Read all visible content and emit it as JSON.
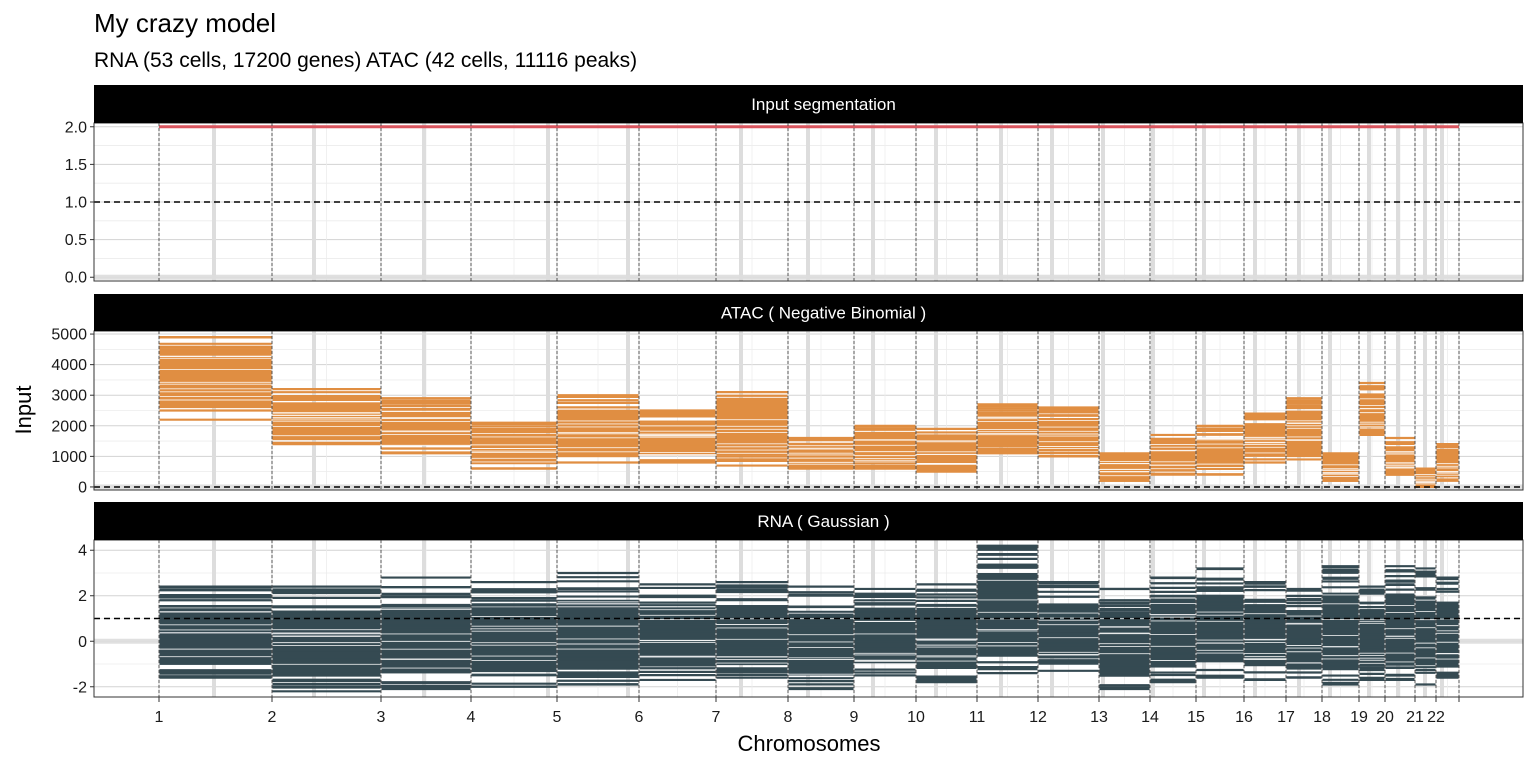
{
  "chart_data": {
    "type": "segment",
    "title": "My crazy model",
    "subtitle": "RNA (53 cells, 17200 genes) ATAC (42 cells, 11116 peaks)",
    "xlabel": "Chromosomes",
    "ylabel": "Input",
    "chromosomes": [
      "1",
      "2",
      "3",
      "4",
      "5",
      "6",
      "7",
      "8",
      "9",
      "10",
      "11",
      "12",
      "13",
      "14",
      "15",
      "16",
      "17",
      "18",
      "19",
      "20",
      "21",
      "22"
    ],
    "colors": {
      "input_segmentation": "#d9555e",
      "atac": "#e08e42",
      "rna": "#354a52",
      "gap": "#dddddd",
      "strip_bg": "#000000"
    },
    "panels": [
      {
        "strip": "Input segmentation",
        "series": "Input segmentation",
        "yticks": [
          "0.0",
          "0.5",
          "1.0",
          "1.5",
          "2.0"
        ],
        "ylim": [
          -0.05,
          2.05
        ],
        "ref_line": 1.0,
        "value": 2.0
      },
      {
        "strip": "ATAC ( Negative Binomial )",
        "series": "ATAC",
        "yticks": [
          "0",
          "1000",
          "2000",
          "3000",
          "4000",
          "5000"
        ],
        "ylim": [
          -100,
          5100
        ],
        "ref_line": 0,
        "ranges": [
          [
            2200,
            4900
          ],
          [
            1400,
            3200
          ],
          [
            1100,
            2900
          ],
          [
            600,
            2100
          ],
          [
            800,
            3000
          ],
          [
            800,
            2500
          ],
          [
            700,
            3100
          ],
          [
            600,
            1600
          ],
          [
            600,
            2000
          ],
          [
            500,
            1900
          ],
          [
            1100,
            2700
          ],
          [
            1000,
            2600
          ],
          [
            200,
            1100
          ],
          [
            400,
            1700
          ],
          [
            400,
            2000
          ],
          [
            800,
            2400
          ],
          [
            900,
            2900
          ],
          [
            200,
            1100
          ],
          [
            1700,
            3400
          ],
          [
            400,
            1600
          ],
          [
            0,
            600
          ],
          [
            200,
            1400
          ]
        ]
      },
      {
        "strip": "RNA ( Gaussian )",
        "series": "RNA",
        "yticks": [
          "-2",
          "0",
          "2",
          "4"
        ],
        "ylim": [
          -2.45,
          4.45
        ],
        "ref_line": 1.0,
        "ranges": [
          [
            -1.6,
            2.4
          ],
          [
            -2.2,
            2.4
          ],
          [
            -2.1,
            2.8
          ],
          [
            -2.0,
            2.6
          ],
          [
            -1.9,
            3.0
          ],
          [
            -1.7,
            2.5
          ],
          [
            -1.6,
            2.6
          ],
          [
            -2.1,
            2.4
          ],
          [
            -1.5,
            2.3
          ],
          [
            -1.8,
            2.5
          ],
          [
            -1.4,
            4.2
          ],
          [
            -1.3,
            2.6
          ],
          [
            -2.1,
            2.3
          ],
          [
            -1.8,
            2.8
          ],
          [
            -1.6,
            3.2
          ],
          [
            -1.7,
            2.6
          ],
          [
            -1.6,
            2.3
          ],
          [
            -1.9,
            3.3
          ],
          [
            -1.7,
            2.4
          ],
          [
            -1.7,
            3.3
          ],
          [
            -1.9,
            3.2
          ],
          [
            -1.6,
            2.8
          ]
        ]
      }
    ]
  }
}
